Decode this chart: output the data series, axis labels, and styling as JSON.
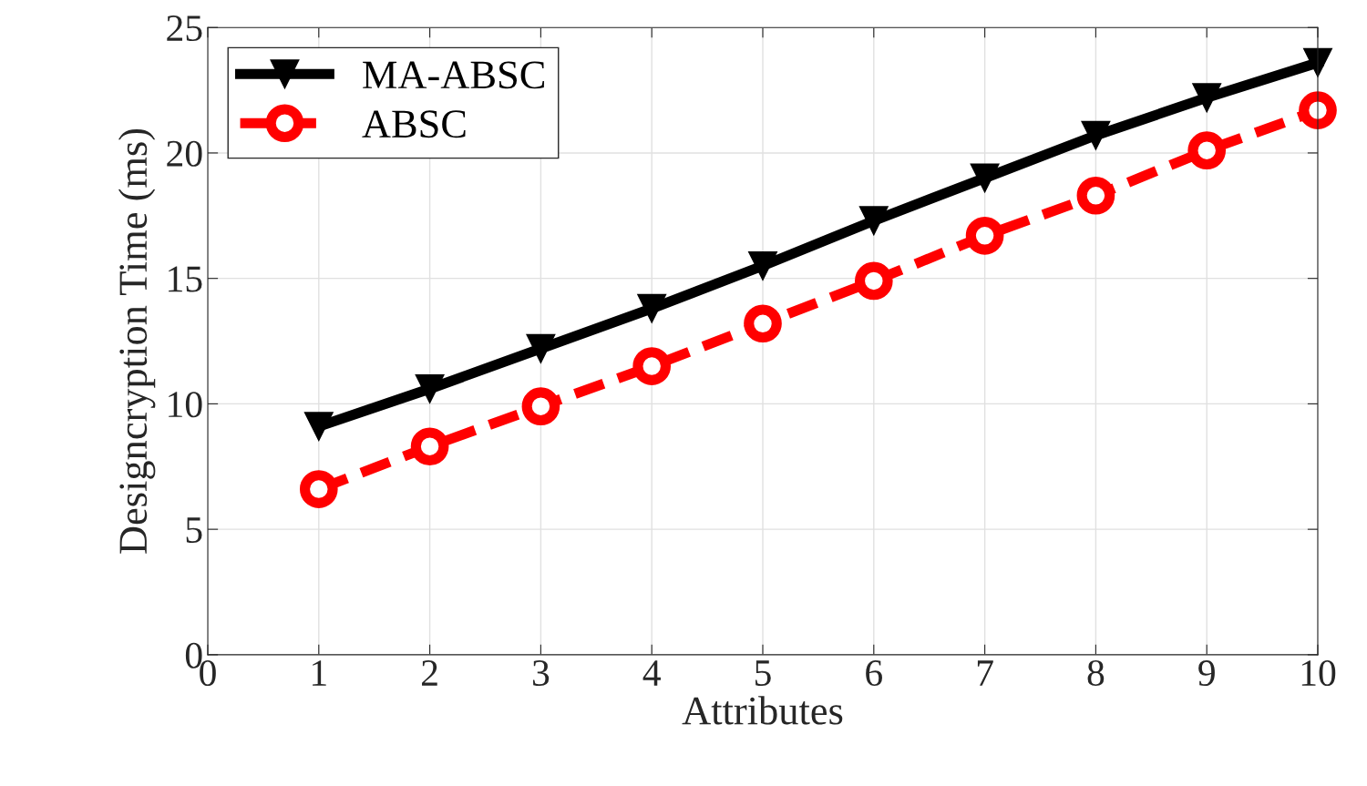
{
  "chart_data": {
    "type": "line",
    "xlabel": "Attributes",
    "ylabel": "Designcryption Time (ms)",
    "x": [
      1,
      2,
      3,
      4,
      5,
      6,
      7,
      8,
      9,
      10
    ],
    "series": [
      {
        "name": "MA-ABSC",
        "color": "#000000",
        "marker": "triangle",
        "line_style": "solid",
        "values": [
          9.1,
          10.6,
          12.2,
          13.8,
          15.5,
          17.3,
          19.0,
          20.7,
          22.2,
          23.6
        ]
      },
      {
        "name": "ABSC",
        "color": "#ff0000",
        "marker": "circle",
        "line_style": "dashed",
        "values": [
          6.6,
          8.3,
          9.9,
          11.5,
          13.2,
          14.9,
          16.7,
          18.3,
          20.1,
          21.7
        ]
      }
    ],
    "xlim": [
      0,
      10
    ],
    "xticks": [
      0,
      1,
      2,
      3,
      4,
      5,
      6,
      7,
      8,
      9,
      10
    ],
    "ylim": [
      0,
      25
    ],
    "yticks": [
      0,
      5,
      10,
      15,
      20,
      25
    ],
    "grid": true,
    "legend": "top left"
  }
}
